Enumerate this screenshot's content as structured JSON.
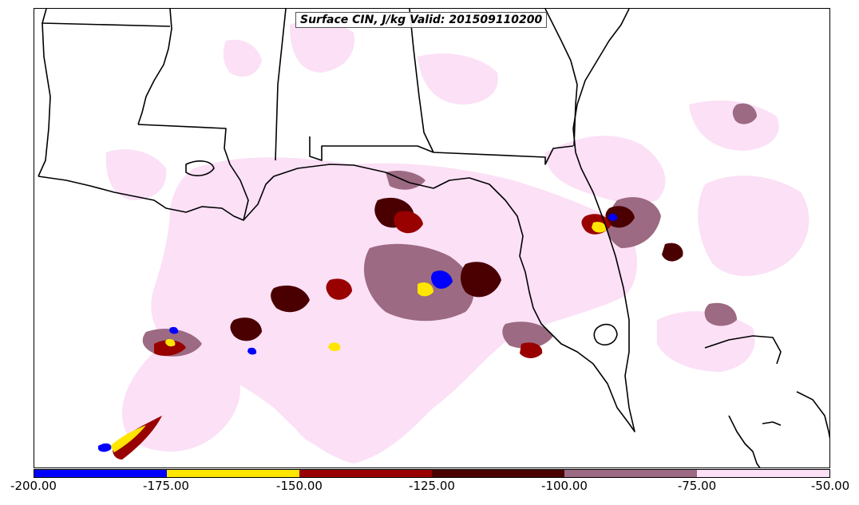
{
  "title": "Surface CIN, J/kg Valid: 201509110200",
  "colorbar": {
    "colors": [
      "#0000ff",
      "#ffe600",
      "#990000",
      "#4a0000",
      "#9c6a82",
      "#fbe0f6"
    ],
    "tick_labels": [
      "-200.00",
      "-175.00",
      "-150.00",
      "-125.00",
      "-100.00",
      "-75.00",
      "-50.00"
    ]
  },
  "map": {
    "field": "Surface CIN",
    "units": "J/kg",
    "region": "Gulf of Mexico and southeastern United States",
    "background_color": "#ffffff",
    "boundary_color": "#000000"
  }
}
